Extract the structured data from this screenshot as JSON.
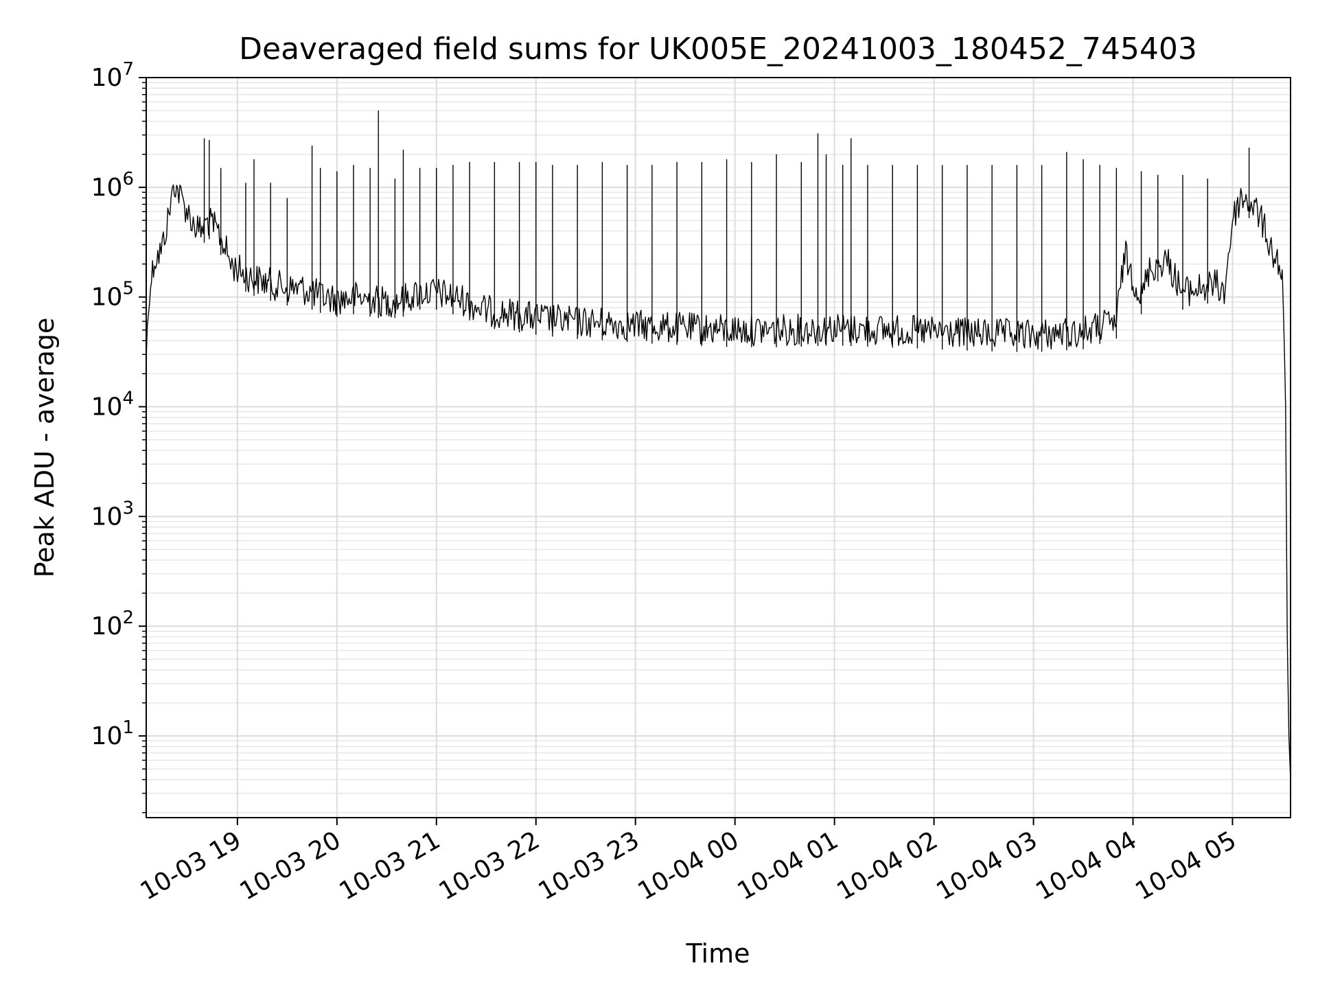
{
  "chart_data": {
    "type": "line",
    "title": "Deaveraged field sums for UK005E_20241003_180452_745403",
    "xlabel": "Time",
    "ylabel": "Peak ADU - average",
    "yscale": "log",
    "ylim": [
      1.8,
      10000000
    ],
    "xlim": [
      "2024-10-03 18:05",
      "2024-10-04 05:35"
    ],
    "grid": true,
    "x_ticks": [
      {
        "value": "2024-10-03 19:00",
        "label": "10-03 19"
      },
      {
        "value": "2024-10-03 20:00",
        "label": "10-03 20"
      },
      {
        "value": "2024-10-03 21:00",
        "label": "10-03 21"
      },
      {
        "value": "2024-10-03 22:00",
        "label": "10-03 22"
      },
      {
        "value": "2024-10-03 23:00",
        "label": "10-03 23"
      },
      {
        "value": "2024-10-04 00:00",
        "label": "10-04 00"
      },
      {
        "value": "2024-10-04 01:00",
        "label": "10-04 01"
      },
      {
        "value": "2024-10-04 02:00",
        "label": "10-04 02"
      },
      {
        "value": "2024-10-04 03:00",
        "label": "10-04 03"
      },
      {
        "value": "2024-10-04 04:00",
        "label": "10-04 04"
      },
      {
        "value": "2024-10-04 05:00",
        "label": "10-04 05"
      }
    ],
    "y_ticks": [
      {
        "value": 10,
        "base": "10",
        "exp": "1"
      },
      {
        "value": 100,
        "base": "10",
        "exp": "2"
      },
      {
        "value": 1000,
        "base": "10",
        "exp": "3"
      },
      {
        "value": 10000,
        "base": "10",
        "exp": "4"
      },
      {
        "value": 100000,
        "base": "10",
        "exp": "5"
      },
      {
        "value": 1000000,
        "base": "10",
        "exp": "6"
      },
      {
        "value": 10000000,
        "base": "10",
        "exp": "7"
      }
    ],
    "series": [
      {
        "color": "#000000",
        "x": [
          "2024-10-03 18:05",
          "2024-10-03 18:07",
          "2024-10-03 18:10",
          "2024-10-03 18:14",
          "2024-10-03 18:18",
          "2024-10-03 18:22",
          "2024-10-03 18:26",
          "2024-10-03 18:30",
          "2024-10-03 18:34",
          "2024-10-03 18:38",
          "2024-10-03 18:42",
          "2024-10-03 18:45",
          "2024-10-03 18:48",
          "2024-10-03 18:52",
          "2024-10-03 18:56",
          "2024-10-03 19:00",
          "2024-10-03 19:08",
          "2024-10-03 19:15",
          "2024-10-03 19:22",
          "2024-10-03 19:30",
          "2024-10-03 19:38",
          "2024-10-03 19:45",
          "2024-10-03 19:52",
          "2024-10-03 20:00",
          "2024-10-03 20:10",
          "2024-10-03 20:20",
          "2024-10-03 20:30",
          "2024-10-03 20:40",
          "2024-10-03 20:50",
          "2024-10-03 21:00",
          "2024-10-03 21:15",
          "2024-10-03 21:30",
          "2024-10-03 21:45",
          "2024-10-03 22:00",
          "2024-10-03 22:20",
          "2024-10-03 22:40",
          "2024-10-03 23:00",
          "2024-10-03 23:30",
          "2024-10-04 00:00",
          "2024-10-04 00:30",
          "2024-10-04 01:00",
          "2024-10-04 01:30",
          "2024-10-04 02:00",
          "2024-10-04 02:30",
          "2024-10-04 03:00",
          "2024-10-04 03:30",
          "2024-10-04 03:50",
          "2024-10-04 03:55",
          "2024-10-04 04:00",
          "2024-10-04 04:05",
          "2024-10-04 04:10",
          "2024-10-04 04:20",
          "2024-10-04 04:30",
          "2024-10-04 04:40",
          "2024-10-04 04:50",
          "2024-10-04 04:55",
          "2024-10-04 05:00",
          "2024-10-04 05:05",
          "2024-10-04 05:10",
          "2024-10-04 05:15",
          "2024-10-04 05:20",
          "2024-10-04 05:24",
          "2024-10-04 05:27",
          "2024-10-04 05:30",
          "2024-10-04 05:32",
          "2024-10-04 05:33",
          "2024-10-04 05:34",
          "2024-10-04 05:35"
        ],
        "y": [
          30000,
          120000,
          220000,
          260000,
          500000,
          1100000,
          800000,
          600000,
          450000,
          400000,
          500000,
          450000,
          400000,
          300000,
          200000,
          180000,
          150000,
          140000,
          130000,
          120000,
          120000,
          110000,
          100000,
          95000,
          100000,
          95000,
          90000,
          95000,
          110000,
          110000,
          95000,
          75000,
          70000,
          65000,
          60000,
          58000,
          55000,
          52000,
          50000,
          50000,
          52000,
          50000,
          48000,
          46000,
          45000,
          48000,
          60000,
          250000,
          150000,
          100000,
          180000,
          220000,
          110000,
          120000,
          130000,
          110000,
          500000,
          800000,
          750000,
          600000,
          400000,
          250000,
          220000,
          150000,
          10000,
          80,
          10,
          4
        ],
        "spikes": [
          {
            "x": "2024-10-03 18:40",
            "y": 2800000
          },
          {
            "x": "2024-10-03 18:43",
            "y": 2700000
          },
          {
            "x": "2024-10-03 18:50",
            "y": 1500000
          },
          {
            "x": "2024-10-03 19:05",
            "y": 1100000
          },
          {
            "x": "2024-10-03 19:10",
            "y": 1800000
          },
          {
            "x": "2024-10-03 19:20",
            "y": 1100000
          },
          {
            "x": "2024-10-03 19:30",
            "y": 800000
          },
          {
            "x": "2024-10-03 19:45",
            "y": 2400000
          },
          {
            "x": "2024-10-03 19:50",
            "y": 1500000
          },
          {
            "x": "2024-10-03 20:00",
            "y": 1400000
          },
          {
            "x": "2024-10-03 20:10",
            "y": 1600000
          },
          {
            "x": "2024-10-03 20:20",
            "y": 1500000
          },
          {
            "x": "2024-10-03 20:25",
            "y": 5000000
          },
          {
            "x": "2024-10-03 20:35",
            "y": 1200000
          },
          {
            "x": "2024-10-03 20:40",
            "y": 2200000
          },
          {
            "x": "2024-10-03 20:50",
            "y": 1500000
          },
          {
            "x": "2024-10-03 21:00",
            "y": 1500000
          },
          {
            "x": "2024-10-03 21:10",
            "y": 1600000
          },
          {
            "x": "2024-10-03 21:20",
            "y": 1700000
          },
          {
            "x": "2024-10-03 21:35",
            "y": 1700000
          },
          {
            "x": "2024-10-03 21:50",
            "y": 1700000
          },
          {
            "x": "2024-10-03 22:00",
            "y": 1700000
          },
          {
            "x": "2024-10-03 22:10",
            "y": 1600000
          },
          {
            "x": "2024-10-03 22:25",
            "y": 1600000
          },
          {
            "x": "2024-10-03 22:40",
            "y": 1700000
          },
          {
            "x": "2024-10-03 22:55",
            "y": 1600000
          },
          {
            "x": "2024-10-03 23:10",
            "y": 1600000
          },
          {
            "x": "2024-10-03 23:25",
            "y": 1700000
          },
          {
            "x": "2024-10-03 23:40",
            "y": 1700000
          },
          {
            "x": "2024-10-03 23:55",
            "y": 1800000
          },
          {
            "x": "2024-10-04 00:10",
            "y": 1700000
          },
          {
            "x": "2024-10-04 00:25",
            "y": 2000000
          },
          {
            "x": "2024-10-04 00:40",
            "y": 1700000
          },
          {
            "x": "2024-10-04 00:50",
            "y": 3100000
          },
          {
            "x": "2024-10-04 00:55",
            "y": 2000000
          },
          {
            "x": "2024-10-04 01:05",
            "y": 1600000
          },
          {
            "x": "2024-10-04 01:10",
            "y": 2800000
          },
          {
            "x": "2024-10-04 01:20",
            "y": 1600000
          },
          {
            "x": "2024-10-04 01:35",
            "y": 1600000
          },
          {
            "x": "2024-10-04 01:50",
            "y": 1600000
          },
          {
            "x": "2024-10-04 02:05",
            "y": 1600000
          },
          {
            "x": "2024-10-04 02:20",
            "y": 1600000
          },
          {
            "x": "2024-10-04 02:35",
            "y": 1600000
          },
          {
            "x": "2024-10-04 02:50",
            "y": 1600000
          },
          {
            "x": "2024-10-04 03:05",
            "y": 1600000
          },
          {
            "x": "2024-10-04 03:20",
            "y": 2100000
          },
          {
            "x": "2024-10-04 03:30",
            "y": 1800000
          },
          {
            "x": "2024-10-04 03:40",
            "y": 1600000
          },
          {
            "x": "2024-10-04 03:50",
            "y": 1500000
          },
          {
            "x": "2024-10-04 04:05",
            "y": 1400000
          },
          {
            "x": "2024-10-04 04:15",
            "y": 1300000
          },
          {
            "x": "2024-10-04 04:30",
            "y": 1300000
          },
          {
            "x": "2024-10-04 04:45",
            "y": 1200000
          },
          {
            "x": "2024-10-04 05:10",
            "y": 2300000
          }
        ]
      }
    ]
  }
}
